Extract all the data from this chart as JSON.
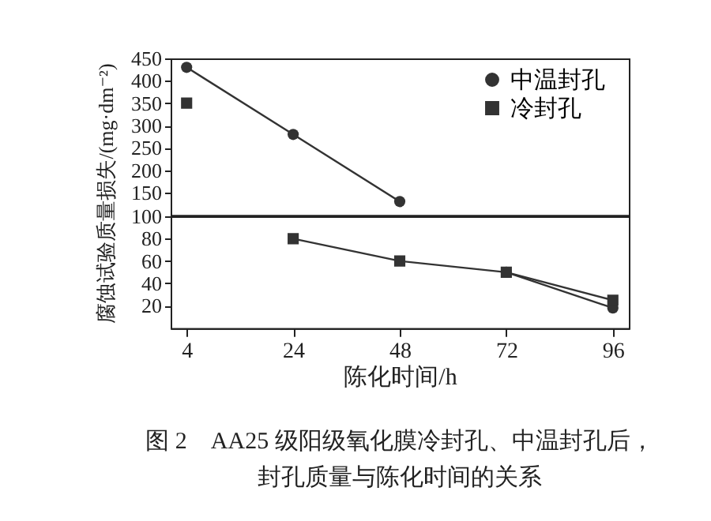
{
  "chart_data": [
    {
      "type": "line",
      "ylabel": "腐蚀试验质量损失/(mg·dm⁻²)",
      "categories": [
        "4",
        "24",
        "48",
        "72",
        "96"
      ],
      "series": [
        {
          "name": "中温封孔",
          "color": "#333333",
          "marker": "circle",
          "values": [
            430,
            280,
            130,
            null,
            null
          ]
        },
        {
          "name": "冷封孔",
          "color": "#333333",
          "marker": "square",
          "values": [
            350,
            null,
            null,
            null,
            null
          ]
        }
      ],
      "ylim": [
        100,
        450
      ],
      "yticks": [
        150,
        200,
        250,
        300,
        350,
        400,
        450
      ],
      "tick_labels": "y",
      "grid": false,
      "legend": "top right"
    },
    {
      "type": "line",
      "title": "图 2　AA25 级阳级氧化膜冷封孔、中温封孔后，",
      "subtitle": "封孔质量与陈化时间的关系",
      "xlabel": "陈化时间/h",
      "categories": [
        "4",
        "24",
        "48",
        "72",
        "96"
      ],
      "series": [
        {
          "color": "#333333",
          "marker": "circle",
          "values": [
            null,
            null,
            null,
            50,
            18
          ]
        },
        {
          "color": "#333333",
          "marker": "square",
          "values": [
            null,
            80,
            60,
            50,
            25
          ]
        }
      ],
      "ylim": [
        0,
        100
      ],
      "yticks": [
        20,
        40,
        60,
        80,
        100
      ],
      "grid": false
    }
  ]
}
